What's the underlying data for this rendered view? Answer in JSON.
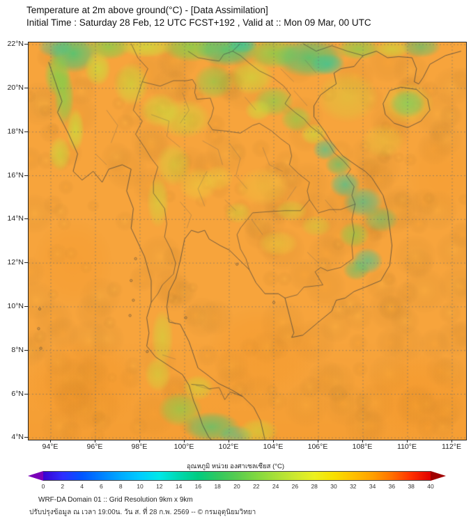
{
  "header": {
    "title": "Temperature at 2m above ground(°C) - [Data Assimilation]",
    "subtitle": "Initial Time : Saturday 28 Feb, 12 UTC FCST+192 , Valid at :: Mon 09 Mar, 00 UTC"
  },
  "axes": {
    "lat_ticks": [
      {
        "label": "22°N",
        "lat": 22
      },
      {
        "label": "20°N",
        "lat": 20
      },
      {
        "label": "18°N",
        "lat": 18
      },
      {
        "label": "16°N",
        "lat": 16
      },
      {
        "label": "14°N",
        "lat": 14
      },
      {
        "label": "12°N",
        "lat": 12
      },
      {
        "label": "10°N",
        "lat": 10
      },
      {
        "label": "8°N",
        "lat": 8
      },
      {
        "label": "6°N",
        "lat": 6
      },
      {
        "label": "4°N",
        "lat": 4
      }
    ],
    "lon_ticks": [
      {
        "label": "94°E",
        "lon": 94
      },
      {
        "label": "96°E",
        "lon": 96
      },
      {
        "label": "98°E",
        "lon": 98
      },
      {
        "label": "100°E",
        "lon": 100
      },
      {
        "label": "102°E",
        "lon": 102
      },
      {
        "label": "104°E",
        "lon": 104
      },
      {
        "label": "106°E",
        "lon": 106
      },
      {
        "label": "108°E",
        "lon": 108
      },
      {
        "label": "110°E",
        "lon": 110
      },
      {
        "label": "112°E",
        "lon": 112
      }
    ]
  },
  "colorbar": {
    "label": "อุณหภูมิ หน่วย องศาเซลเซียส (°C)",
    "ticks": [
      0,
      2,
      4,
      6,
      8,
      10,
      12,
      14,
      16,
      18,
      20,
      22,
      24,
      26,
      28,
      30,
      32,
      34,
      36,
      38,
      40
    ],
    "colors": [
      "#3a00d0",
      "#2e2eff",
      "#0055ff",
      "#0080ff",
      "#00aaff",
      "#00ccff",
      "#00e8e8",
      "#00d8b0",
      "#00cc80",
      "#30c860",
      "#58cc50",
      "#80d840",
      "#a8e038",
      "#cce830",
      "#ecf020",
      "#f8e000",
      "#ffc000",
      "#ffa000",
      "#ff7000",
      "#ff3000",
      "#e00000"
    ],
    "arrow_left": "#7a00b8",
    "arrow_right": "#a00000"
  },
  "map": {
    "base_color": "#f7a43c",
    "palette": {
      "teal": "#2ec9a0",
      "green": "#46c877",
      "lgreen": "#7fd24c",
      "ygreen": "#c6e23c",
      "yellow": "#e8da3e",
      "dorange": "#f29020"
    },
    "features": [
      [
        95.0,
        21.6,
        1.1,
        0.9,
        "green",
        0.85
      ],
      [
        94.3,
        20.6,
        0.6,
        1.0,
        "lgreen",
        0.8
      ],
      [
        96.6,
        21.9,
        1.0,
        0.6,
        "lgreen",
        0.75
      ],
      [
        98.3,
        21.9,
        1.2,
        0.5,
        "ygreen",
        0.7
      ],
      [
        100.3,
        21.9,
        1.3,
        0.7,
        "lgreen",
        0.8
      ],
      [
        101.9,
        21.8,
        1.4,
        0.8,
        "green",
        0.85
      ],
      [
        102.6,
        22.0,
        0.7,
        0.4,
        "teal",
        0.7
      ],
      [
        104.0,
        21.6,
        1.2,
        0.7,
        "lgreen",
        0.75
      ],
      [
        105.6,
        21.4,
        1.6,
        0.9,
        "green",
        0.8
      ],
      [
        106.4,
        21.1,
        0.8,
        0.5,
        "teal",
        0.65
      ],
      [
        107.8,
        21.8,
        1.0,
        0.5,
        "lgreen",
        0.7
      ],
      [
        110.6,
        21.9,
        0.9,
        0.5,
        "green",
        0.6
      ],
      [
        109.3,
        21.8,
        0.8,
        0.4,
        "ygreen",
        0.6
      ],
      [
        94.6,
        19.6,
        0.45,
        1.3,
        "lgreen",
        0.75
      ],
      [
        95.1,
        18.1,
        0.4,
        1.0,
        "ygreen",
        0.7
      ],
      [
        94.4,
        17.0,
        0.5,
        0.8,
        "ygreen",
        0.6
      ],
      [
        96.1,
        20.9,
        0.6,
        0.8,
        "ygreen",
        0.7
      ],
      [
        94.2,
        21.9,
        0.8,
        0.5,
        "teal",
        0.5
      ],
      [
        97.6,
        20.2,
        0.8,
        1.0,
        "ygreen",
        0.6
      ],
      [
        98.9,
        19.0,
        0.9,
        0.8,
        "ygreen",
        0.55
      ],
      [
        100.0,
        18.6,
        1.2,
        0.9,
        "ygreen",
        0.5
      ],
      [
        101.3,
        20.3,
        0.9,
        0.8,
        "lgreen",
        0.6
      ],
      [
        103.0,
        20.5,
        1.0,
        0.8,
        "ygreen",
        0.6
      ],
      [
        104.0,
        19.4,
        0.9,
        0.7,
        "lgreen",
        0.65
      ],
      [
        103.3,
        19.0,
        0.6,
        0.5,
        "ygreen",
        0.6
      ],
      [
        105.0,
        18.6,
        0.7,
        0.6,
        "lgreen",
        0.6
      ],
      [
        105.8,
        17.9,
        0.6,
        0.5,
        "ygreen",
        0.6
      ],
      [
        106.3,
        17.2,
        0.55,
        0.5,
        "teal",
        0.6
      ],
      [
        106.9,
        16.5,
        0.6,
        0.5,
        "green",
        0.6
      ],
      [
        107.2,
        15.6,
        0.7,
        0.6,
        "teal",
        0.65
      ],
      [
        108.0,
        14.8,
        0.9,
        0.7,
        "teal",
        0.6
      ],
      [
        108.8,
        14.0,
        0.8,
        0.6,
        "green",
        0.5
      ],
      [
        107.6,
        13.3,
        0.7,
        0.6,
        "lgreen",
        0.6
      ],
      [
        108.2,
        12.1,
        0.7,
        0.6,
        "teal",
        0.6
      ],
      [
        107.7,
        11.7,
        0.6,
        0.5,
        "green",
        0.55
      ],
      [
        110.0,
        19.3,
        0.8,
        0.65,
        "green",
        0.7
      ],
      [
        110.0,
        19.3,
        1.2,
        0.95,
        "ygreen",
        0.4
      ],
      [
        107.3,
        19.6,
        1.4,
        1.2,
        "ygreen",
        0.35
      ],
      [
        108.9,
        17.6,
        1.0,
        0.8,
        "yellow",
        0.35
      ],
      [
        99.5,
        16.5,
        0.8,
        1.0,
        "ygreen",
        0.45
      ],
      [
        100.6,
        15.6,
        0.9,
        0.8,
        "yellow",
        0.45
      ],
      [
        98.8,
        14.8,
        0.5,
        1.2,
        "ygreen",
        0.5
      ],
      [
        101.5,
        15.9,
        0.7,
        0.6,
        "yellow",
        0.4
      ],
      [
        103.5,
        15.5,
        1.2,
        0.9,
        "yellow",
        0.3
      ],
      [
        104.8,
        14.4,
        0.7,
        0.5,
        "ygreen",
        0.4
      ],
      [
        102.4,
        14.3,
        0.6,
        0.5,
        "ygreen",
        0.4
      ],
      [
        104.2,
        12.9,
        0.9,
        0.6,
        "yellow",
        0.45
      ],
      [
        105.9,
        13.7,
        0.7,
        0.5,
        "ygreen",
        0.4
      ],
      [
        99.0,
        8.6,
        0.5,
        1.3,
        "ygreen",
        0.5
      ],
      [
        98.8,
        6.9,
        0.6,
        0.8,
        "ygreen",
        0.5
      ],
      [
        99.8,
        5.3,
        1.0,
        0.8,
        "lgreen",
        0.65
      ],
      [
        101.2,
        4.5,
        1.3,
        0.7,
        "green",
        0.7
      ],
      [
        102.3,
        4.1,
        0.8,
        0.5,
        "teal",
        0.5
      ],
      [
        100.6,
        6.3,
        0.7,
        0.6,
        "ygreen",
        0.5
      ],
      [
        103.3,
        4.3,
        0.9,
        0.6,
        "ygreen",
        0.5
      ],
      [
        95.5,
        6.5,
        2.5,
        2.2,
        "dorange",
        0.35
      ],
      [
        103.5,
        8.0,
        2.5,
        2.0,
        "dorange",
        0.3
      ],
      [
        110.5,
        6.0,
        2.5,
        2.0,
        "dorange",
        0.3
      ],
      [
        95.0,
        12.0,
        1.8,
        2.0,
        "dorange",
        0.25
      ],
      [
        111.5,
        16.0,
        1.5,
        2.0,
        "dorange",
        0.2
      ]
    ]
  },
  "footer": {
    "line1": "WRF-DA Domain 01 :: Grid Resolution 9km x 9km",
    "line2": "ปรับปรุงข้อมูล ณ เวลา 19:00น. วัน ส. ที่ 28 ก.พ. 2569 -- © กรมอุตุนิยมวิทยา"
  }
}
